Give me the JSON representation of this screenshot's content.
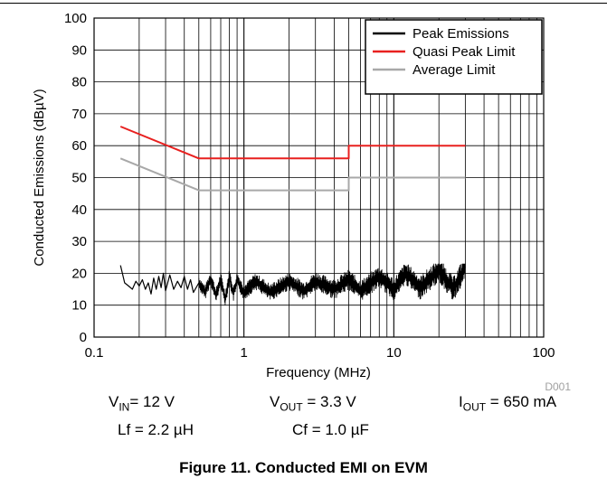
{
  "chart_data": {
    "type": "line",
    "xscale": "log",
    "xlim": [
      0.1,
      100
    ],
    "ylim": [
      0,
      100
    ],
    "xlabel": "Frequency (MHz)",
    "ylabel": "Conducted Emissions (dBµV)",
    "grid": true,
    "legend_placement": "top-right",
    "x_ticks": [
      "0.1",
      "1",
      "10",
      "100"
    ],
    "y_ticks": [
      "0",
      "10",
      "20",
      "30",
      "40",
      "50",
      "60",
      "70",
      "80",
      "90",
      "100"
    ],
    "figure_id": "D001",
    "series": [
      {
        "name": "Peak Emissions",
        "color": "#000000",
        "x": [
          0.15,
          0.16,
          0.17,
          0.18,
          0.19,
          0.2,
          0.21,
          0.22,
          0.23,
          0.24,
          0.25,
          0.26,
          0.27,
          0.28,
          0.29,
          0.3,
          0.32,
          0.34,
          0.36,
          0.38,
          0.4,
          0.42,
          0.44,
          0.46,
          0.5,
          0.55,
          0.6,
          0.65,
          0.7,
          0.75,
          0.8,
          0.85,
          0.9,
          1.0,
          1.2,
          1.5,
          2.0,
          2.5,
          3.0,
          4.0,
          5.0,
          6.0,
          8.0,
          10.0,
          12.0,
          15.0,
          20.0,
          25.0,
          30.0
        ],
        "values": [
          22.5,
          17.0,
          16.0,
          15.0,
          17.5,
          16.0,
          18.0,
          15.0,
          17.0,
          13.5,
          18.5,
          15.0,
          19.0,
          15.5,
          20.0,
          14.5,
          19.5,
          15.0,
          17.5,
          15.5,
          19.0,
          15.0,
          18.0,
          14.0,
          17.0,
          14.0,
          18.5,
          13.0,
          18.0,
          12.0,
          19.0,
          13.5,
          18.0,
          14.0,
          17.5,
          14.0,
          17.5,
          14.5,
          17.5,
          15.0,
          18.0,
          14.5,
          19.0,
          15.0,
          20.0,
          15.5,
          21.0,
          15.0,
          22.0
        ]
      },
      {
        "name": "Quasi Peak Limit",
        "color": "#e8201f",
        "x": [
          0.15,
          0.5,
          5.0,
          5.0,
          30.0
        ],
        "values": [
          66,
          56,
          56,
          60,
          60
        ]
      },
      {
        "name": "Average Limit",
        "color": "#a8a8a8",
        "x": [
          0.15,
          0.5,
          5.0,
          5.0,
          30.0
        ],
        "values": [
          56,
          46,
          46,
          50,
          50
        ]
      }
    ]
  },
  "conditions": {
    "vin_main": "V",
    "vin_sub": "IN",
    "vin_value": "= 12 V",
    "vout_main": "V",
    "vout_sub": "OUT",
    "vout_value": " = 3.3 V",
    "iout_main": "I",
    "iout_sub": "OUT",
    "iout_value": " = 650 mA",
    "lf": "Lf = 2.2 µH",
    "cf": "Cf = 1.0 µF"
  },
  "caption": "Figure 11. Conducted EMI on EVM"
}
